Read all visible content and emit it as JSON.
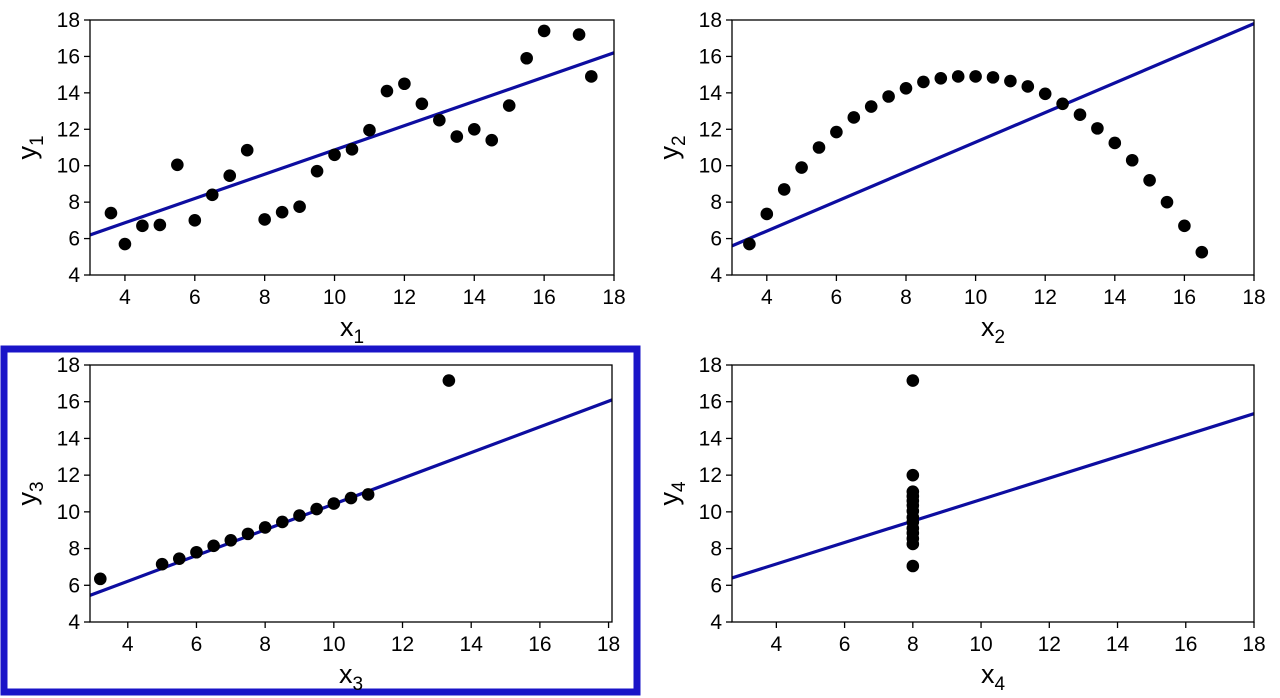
{
  "figure": {
    "highlight_color": "#1a14c8",
    "line_color": "#0d0da0",
    "marker_color": "#000000",
    "highlighted_panel": 2
  },
  "chart_data": [
    {
      "type": "scatter",
      "xlabel": "x",
      "xlabel_sub": "1",
      "ylabel": "y",
      "ylabel_sub": "1",
      "xlim": [
        3,
        18
      ],
      "ylim": [
        4,
        18
      ],
      "xticks": [
        4,
        6,
        8,
        10,
        12,
        14,
        16,
        18
      ],
      "yticks": [
        4,
        6,
        8,
        10,
        12,
        14,
        16,
        18
      ],
      "points": [
        [
          3.6,
          7.4
        ],
        [
          4,
          5.7
        ],
        [
          4.5,
          6.7
        ],
        [
          5,
          6.75
        ],
        [
          5.5,
          10.05
        ],
        [
          6,
          7
        ],
        [
          6.5,
          8.4
        ],
        [
          7,
          9.45
        ],
        [
          7.5,
          10.85
        ],
        [
          8,
          7.05
        ],
        [
          8.5,
          7.45
        ],
        [
          9,
          7.75
        ],
        [
          9.5,
          9.7
        ],
        [
          10,
          10.6
        ],
        [
          10.5,
          10.9
        ],
        [
          11,
          11.95
        ],
        [
          11.5,
          14.1
        ],
        [
          12,
          14.5
        ],
        [
          12.5,
          13.4
        ],
        [
          13,
          12.5
        ],
        [
          13.5,
          11.6
        ],
        [
          14,
          12
        ],
        [
          14.5,
          11.4
        ],
        [
          15,
          13.3
        ],
        [
          15.5,
          15.9
        ],
        [
          16,
          17.4
        ],
        [
          17,
          17.2
        ],
        [
          17.35,
          14.9
        ]
      ],
      "fit_line": {
        "x": [
          3,
          18
        ],
        "y": [
          6.2,
          16.2
        ]
      }
    },
    {
      "type": "scatter",
      "xlabel": "x",
      "xlabel_sub": "2",
      "ylabel": "y",
      "ylabel_sub": "2",
      "xlim": [
        3,
        18
      ],
      "ylim": [
        4,
        18
      ],
      "xticks": [
        4,
        6,
        8,
        10,
        12,
        14,
        16,
        18
      ],
      "yticks": [
        4,
        6,
        8,
        10,
        12,
        14,
        16,
        18
      ],
      "points": [
        [
          3.5,
          5.7
        ],
        [
          4,
          7.35
        ],
        [
          4.5,
          8.7
        ],
        [
          5,
          9.9
        ],
        [
          5.5,
          11
        ],
        [
          6,
          11.85
        ],
        [
          6.5,
          12.65
        ],
        [
          7,
          13.25
        ],
        [
          7.5,
          13.8
        ],
        [
          8,
          14.25
        ],
        [
          8.5,
          14.6
        ],
        [
          9,
          14.8
        ],
        [
          9.5,
          14.9
        ],
        [
          10,
          14.9
        ],
        [
          10.5,
          14.85
        ],
        [
          11,
          14.65
        ],
        [
          11.5,
          14.35
        ],
        [
          12,
          13.95
        ],
        [
          12.5,
          13.4
        ],
        [
          13,
          12.8
        ],
        [
          13.5,
          12.05
        ],
        [
          14,
          11.25
        ],
        [
          14.5,
          10.3
        ],
        [
          15,
          9.2
        ],
        [
          15.5,
          8
        ],
        [
          16,
          6.7
        ],
        [
          16.5,
          5.25
        ]
      ],
      "fit_line": {
        "x": [
          3,
          18
        ],
        "y": [
          5.6,
          17.8
        ]
      }
    },
    {
      "type": "scatter",
      "xlabel": "x",
      "xlabel_sub": "3",
      "ylabel": "y",
      "ylabel_sub": "3",
      "xlim": [
        2.9,
        18.1
      ],
      "ylim": [
        4,
        18
      ],
      "xticks": [
        4,
        6,
        8,
        10,
        12,
        14,
        16,
        18
      ],
      "yticks": [
        4,
        6,
        8,
        10,
        12,
        14,
        16,
        18
      ],
      "points": [
        [
          3.2,
          6.35
        ],
        [
          5,
          7.15
        ],
        [
          5.5,
          7.45
        ],
        [
          6,
          7.8
        ],
        [
          6.5,
          8.15
        ],
        [
          7,
          8.45
        ],
        [
          7.5,
          8.8
        ],
        [
          8,
          9.15
        ],
        [
          8.5,
          9.45
        ],
        [
          9,
          9.8
        ],
        [
          9.5,
          10.15
        ],
        [
          10,
          10.45
        ],
        [
          10.5,
          10.75
        ],
        [
          11,
          10.95
        ],
        [
          13.35,
          17.15
        ]
      ],
      "fit_line": {
        "x": [
          2.9,
          18.1
        ],
        "y": [
          5.45,
          16.1
        ]
      }
    },
    {
      "type": "scatter",
      "xlabel": "x",
      "xlabel_sub": "4",
      "ylabel": "y",
      "ylabel_sub": "4",
      "xlim": [
        2.7,
        18
      ],
      "ylim": [
        4,
        18
      ],
      "xticks": [
        4,
        6,
        8,
        10,
        12,
        14,
        16,
        18
      ],
      "yticks": [
        4,
        6,
        8,
        10,
        12,
        14,
        16,
        18
      ],
      "points": [
        [
          8,
          7.05
        ],
        [
          8,
          8.25
        ],
        [
          8,
          8.55
        ],
        [
          8,
          8.85
        ],
        [
          8,
          9.1
        ],
        [
          8,
          9.45
        ],
        [
          8,
          9.7
        ],
        [
          8,
          10.05
        ],
        [
          8,
          10.35
        ],
        [
          8,
          10.6
        ],
        [
          8,
          10.85
        ],
        [
          8,
          11.1
        ],
        [
          8,
          12
        ],
        [
          8,
          17.15
        ]
      ],
      "fit_line": {
        "x": [
          2.7,
          18
        ],
        "y": [
          6.4,
          15.35
        ]
      }
    }
  ]
}
